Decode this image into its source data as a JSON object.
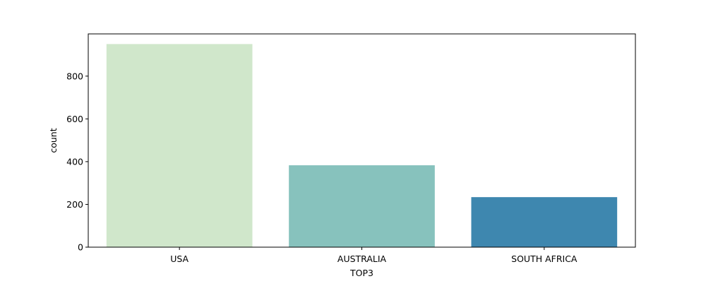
{
  "chart_data": {
    "type": "bar",
    "categories": [
      "USA",
      "AUSTRALIA",
      "SOUTH AFRICA"
    ],
    "values": [
      950,
      383,
      234
    ],
    "colors": [
      "#d0e7cb",
      "#87c2bd",
      "#3e87af"
    ],
    "title": "",
    "xlabel": "TOP3",
    "ylabel": "count",
    "ylim": [
      0,
      997.5
    ],
    "yticks": [
      0,
      200,
      400,
      600,
      800
    ],
    "grid": false,
    "legend": "none"
  }
}
